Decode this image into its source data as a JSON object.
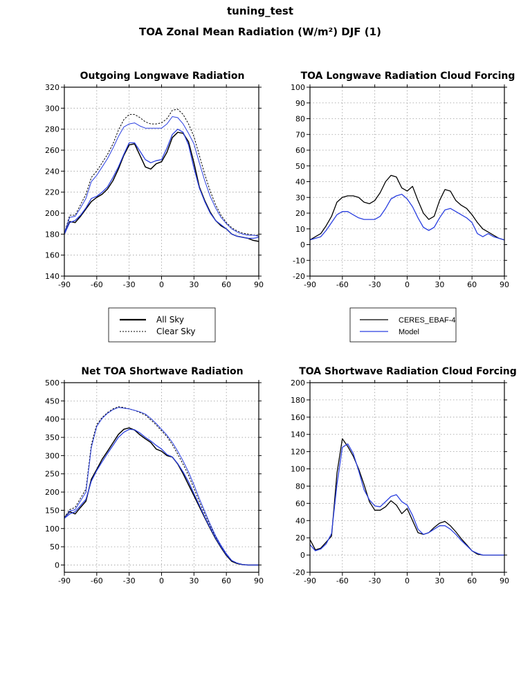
{
  "header": {
    "title": "tuning_test",
    "subtitle": "TOA Zonal Mean Radiation (W/m²) DJF (1)"
  },
  "legends": {
    "sky": {
      "all_label": "All  Sky",
      "clear_label": "Clear Sky"
    },
    "source": {
      "obs_label": "CERES_EBAF-4",
      "model_label": "Model"
    }
  },
  "colors": {
    "obs": "#000000",
    "model": "#2a3fe0",
    "grid": "#9a9a9a"
  },
  "chart_data": [
    {
      "type": "line",
      "title": "Outgoing Longwave Radiation",
      "xlim": [
        -90,
        90
      ],
      "ylim": [
        140,
        320
      ],
      "xticks": [
        -90,
        -60,
        -30,
        0,
        30,
        60,
        90
      ],
      "yticks": [
        140,
        160,
        180,
        200,
        220,
        240,
        260,
        280,
        300,
        320
      ],
      "grid": true,
      "x": [
        -90,
        -85,
        -80,
        -75,
        -70,
        -65,
        -60,
        -55,
        -50,
        -45,
        -40,
        -35,
        -30,
        -25,
        -20,
        -15,
        -10,
        -5,
        0,
        5,
        10,
        15,
        20,
        25,
        30,
        35,
        40,
        45,
        50,
        55,
        60,
        65,
        70,
        75,
        80,
        85,
        90
      ],
      "series": [
        {
          "name": "CERES_EBAF-4 All Sky",
          "style": "solid",
          "width": 1.5,
          "color": "obs",
          "values": [
            180,
            192,
            191,
            197,
            204,
            211,
            215,
            218,
            223,
            231,
            242,
            255,
            265,
            266,
            255,
            244,
            242,
            247,
            249,
            258,
            272,
            277,
            276,
            268,
            248,
            225,
            212,
            201,
            193,
            188,
            185,
            180,
            178,
            177,
            176,
            174,
            173
          ]
        },
        {
          "name": "Model All Sky",
          "style": "solid",
          "width": 1.3,
          "color": "model",
          "values": [
            180,
            191,
            193,
            198,
            205,
            214,
            216,
            220,
            225,
            234,
            244,
            256,
            267,
            267,
            259,
            251,
            248,
            250,
            251,
            262,
            275,
            280,
            277,
            265,
            243,
            224,
            211,
            200,
            193,
            189,
            185,
            180,
            178,
            177,
            176,
            176,
            177
          ]
        },
        {
          "name": "CERES_EBAF-4 Clear Sky",
          "style": "dashed",
          "width": 1.0,
          "color": "obs",
          "values": [
            181,
            198,
            198,
            208,
            218,
            234,
            240,
            248,
            256,
            266,
            279,
            289,
            294,
            294,
            291,
            287,
            285,
            285,
            286,
            290,
            298,
            299,
            294,
            285,
            273,
            255,
            237,
            221,
            208,
            198,
            191,
            186,
            183,
            181,
            180,
            179,
            179
          ]
        },
        {
          "name": "Model Clear Sky",
          "style": "solid",
          "width": 1.0,
          "color": "model",
          "values": [
            181,
            196,
            197,
            205,
            214,
            230,
            236,
            244,
            252,
            262,
            273,
            282,
            285,
            286,
            283,
            281,
            281,
            281,
            281,
            285,
            292,
            291,
            285,
            276,
            266,
            248,
            231,
            216,
            205,
            196,
            190,
            185,
            182,
            180,
            179,
            179,
            178
          ]
        }
      ]
    },
    {
      "type": "line",
      "title": "TOA Longwave Radiation Cloud Forcing",
      "xlim": [
        -90,
        90
      ],
      "ylim": [
        -20,
        100
      ],
      "xticks": [
        -90,
        -60,
        -30,
        0,
        30,
        60,
        90
      ],
      "yticks": [
        -20,
        -10,
        0,
        10,
        20,
        30,
        40,
        50,
        60,
        70,
        80,
        90,
        100
      ],
      "grid": true,
      "x": [
        -90,
        -85,
        -80,
        -75,
        -70,
        -65,
        -60,
        -55,
        -50,
        -45,
        -40,
        -35,
        -30,
        -25,
        -20,
        -15,
        -10,
        -5,
        0,
        5,
        10,
        15,
        20,
        25,
        30,
        35,
        40,
        45,
        50,
        55,
        60,
        65,
        70,
        75,
        80,
        85,
        90
      ],
      "series": [
        {
          "name": "CERES_EBAF-4",
          "style": "solid",
          "width": 1.3,
          "color": "obs",
          "values": [
            3,
            5,
            7,
            12,
            18,
            27,
            30,
            31,
            31,
            30,
            27,
            26,
            28,
            33,
            40,
            44,
            43,
            36,
            34,
            37,
            28,
            20,
            16,
            18,
            28,
            35,
            34,
            28,
            25,
            23,
            19,
            14,
            10,
            8,
            6,
            4,
            3
          ]
        },
        {
          "name": "Model",
          "style": "solid",
          "width": 1.3,
          "color": "model",
          "values": [
            3,
            4,
            5,
            9,
            14,
            19,
            21,
            21,
            19,
            17,
            16,
            16,
            16,
            18,
            23,
            29,
            31,
            32,
            29,
            24,
            17,
            11,
            9,
            11,
            17,
            22,
            23,
            21,
            19,
            17,
            14,
            7,
            5,
            7,
            5,
            4,
            3
          ]
        }
      ]
    },
    {
      "type": "line",
      "title": "Net TOA Shortwave Radiation",
      "xlim": [
        -90,
        90
      ],
      "ylim": [
        -20,
        500
      ],
      "xticks": [
        -90,
        -60,
        -30,
        0,
        30,
        60,
        90
      ],
      "yticks": [
        0,
        50,
        100,
        150,
        200,
        250,
        300,
        350,
        400,
        450,
        500
      ],
      "grid": true,
      "x": [
        -90,
        -85,
        -80,
        -75,
        -70,
        -65,
        -60,
        -55,
        -50,
        -45,
        -40,
        -35,
        -30,
        -25,
        -20,
        -15,
        -10,
        -5,
        0,
        5,
        10,
        15,
        20,
        25,
        30,
        35,
        40,
        45,
        50,
        55,
        60,
        65,
        70,
        75,
        80,
        85,
        90
      ],
      "series": [
        {
          "name": "CERES_EBAF-4 All Sky",
          "style": "solid",
          "width": 1.5,
          "color": "obs",
          "values": [
            130,
            146,
            140,
            158,
            175,
            235,
            262,
            290,
            312,
            335,
            358,
            372,
            376,
            370,
            357,
            346,
            336,
            318,
            312,
            300,
            296,
            277,
            250,
            220,
            190,
            160,
            130,
            100,
            72,
            48,
            26,
            10,
            4,
            1,
            0,
            0,
            0
          ]
        },
        {
          "name": "Model All Sky",
          "style": "solid",
          "width": 1.3,
          "color": "model",
          "values": [
            128,
            140,
            146,
            163,
            180,
            230,
            259,
            283,
            306,
            328,
            350,
            364,
            372,
            371,
            362,
            350,
            340,
            328,
            318,
            303,
            296,
            278,
            255,
            228,
            196,
            164,
            132,
            102,
            74,
            50,
            28,
            12,
            5,
            1,
            0,
            0,
            0
          ]
        },
        {
          "name": "CERES_EBAF-4 Clear Sky",
          "style": "dashed",
          "width": 1.0,
          "color": "obs",
          "values": [
            130,
            152,
            158,
            183,
            208,
            330,
            385,
            405,
            418,
            428,
            434,
            432,
            428,
            424,
            418,
            411,
            398,
            384,
            368,
            352,
            330,
            304,
            276,
            246,
            210,
            174,
            140,
            108,
            78,
            53,
            30,
            12,
            5,
            1,
            0,
            0,
            0
          ]
        },
        {
          "name": "Model Clear Sky",
          "style": "solid",
          "width": 1.0,
          "color": "model",
          "values": [
            128,
            148,
            152,
            176,
            200,
            322,
            380,
            402,
            416,
            426,
            432,
            430,
            428,
            424,
            420,
            414,
            402,
            388,
            372,
            356,
            336,
            312,
            285,
            255,
            220,
            182,
            147,
            112,
            80,
            54,
            31,
            12,
            5,
            1,
            0,
            0,
            0
          ]
        }
      ]
    },
    {
      "type": "line",
      "title": "TOA Shortwave Radiation Cloud Forcing",
      "xlim": [
        -90,
        90
      ],
      "ylim": [
        -20,
        200
      ],
      "xticks": [
        -90,
        -60,
        -30,
        0,
        30,
        60,
        90
      ],
      "yticks": [
        -20,
        0,
        20,
        40,
        60,
        80,
        100,
        120,
        140,
        160,
        180,
        200
      ],
      "grid": true,
      "x": [
        -90,
        -85,
        -80,
        -75,
        -70,
        -65,
        -60,
        -55,
        -50,
        -45,
        -40,
        -35,
        -30,
        -25,
        -20,
        -15,
        -10,
        -5,
        0,
        5,
        10,
        15,
        20,
        25,
        30,
        35,
        40,
        45,
        50,
        55,
        60,
        65,
        70,
        75,
        80,
        85,
        90
      ],
      "series": [
        {
          "name": "CERES_EBAF-4",
          "style": "solid",
          "width": 1.3,
          "color": "obs",
          "values": [
            18,
            6,
            8,
            15,
            22,
            95,
            135,
            126,
            115,
            100,
            82,
            62,
            52,
            52,
            56,
            63,
            58,
            48,
            54,
            40,
            26,
            24,
            26,
            32,
            37,
            39,
            34,
            27,
            19,
            12,
            5,
            1,
            0,
            0,
            0,
            0,
            0
          ]
        },
        {
          "name": "Model",
          "style": "solid",
          "width": 1.3,
          "color": "model",
          "values": [
            12,
            5,
            7,
            13,
            25,
            82,
            125,
            129,
            118,
            98,
            76,
            64,
            57,
            56,
            62,
            68,
            70,
            62,
            58,
            46,
            30,
            24,
            26,
            30,
            34,
            34,
            30,
            24,
            17,
            11,
            5,
            2,
            0,
            0,
            0,
            0,
            0
          ]
        }
      ]
    }
  ]
}
